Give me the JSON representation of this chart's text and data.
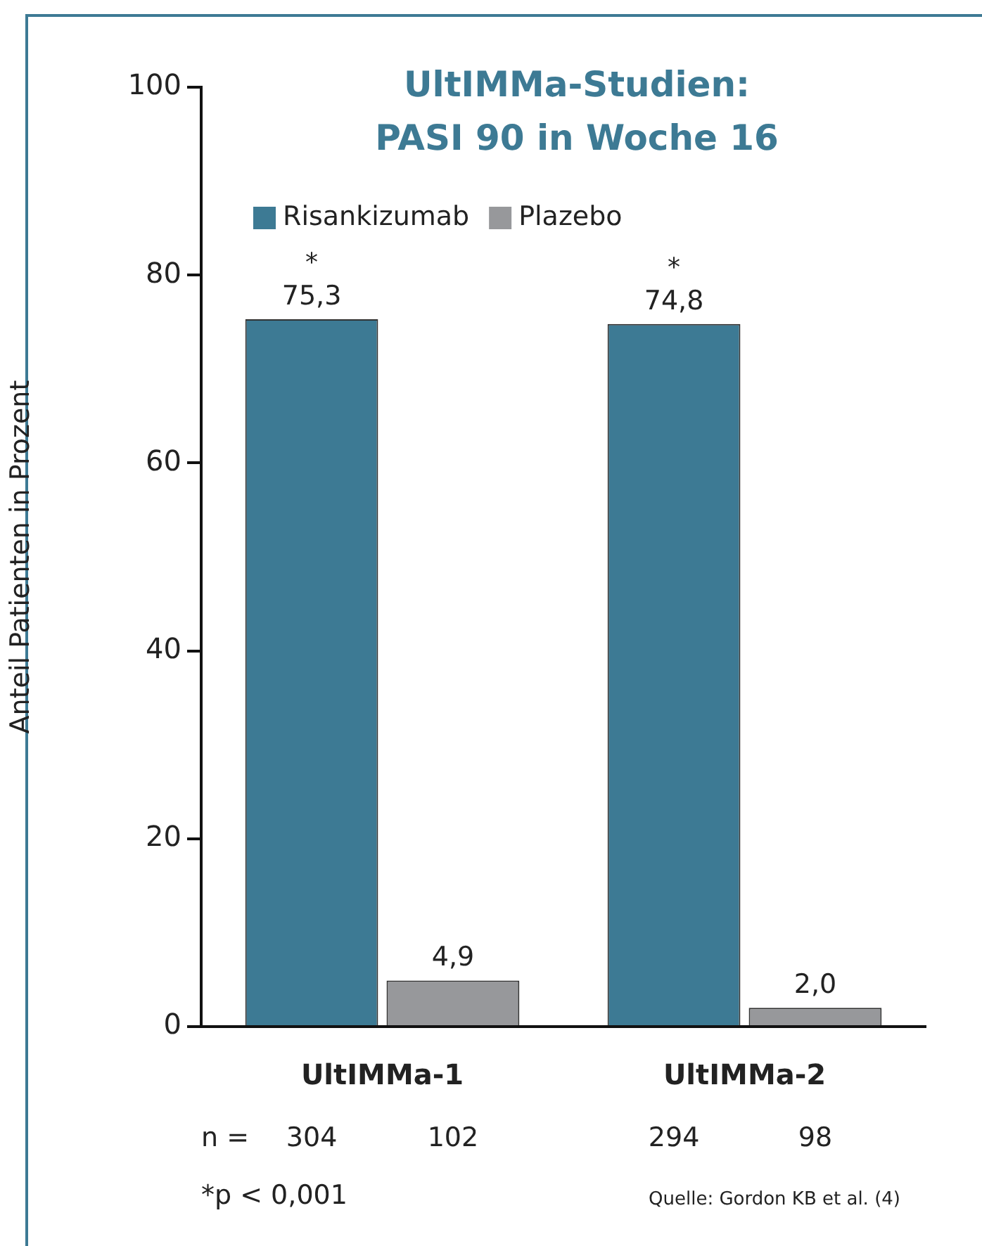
{
  "chart_data": {
    "type": "bar",
    "title": "UltIMMa-Studien:\nPASI 90 in Woche 16",
    "ylabel": "Anteil Patienten in Prozent",
    "categories": [
      "UltIMMa-1",
      "UltIMMa-2"
    ],
    "series": [
      {
        "name": "Risankizumab",
        "color": "#3d7a94",
        "values": [
          75.3,
          74.8
        ],
        "value_labels": [
          "75,3",
          "74,8"
        ]
      },
      {
        "name": "Plazebo",
        "color": "#97989b",
        "values": [
          4.9,
          2.0
        ],
        "value_labels": [
          "4,9",
          "2,0"
        ]
      }
    ],
    "ylim": [
      0,
      100
    ],
    "yticks": [
      0,
      20,
      40,
      60,
      80,
      100
    ],
    "grid": false,
    "legend": "top",
    "annotations": [
      "*",
      "*",
      "n =",
      "304",
      "102",
      "294",
      "98",
      "*p < 0,001",
      "Quelle: Gordon KB et al. (4)"
    ]
  }
}
